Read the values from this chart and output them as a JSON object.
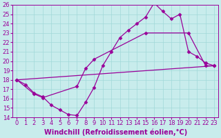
{
  "xlabel": "Windchill (Refroidissement éolien,°C)",
  "bg_color": "#c8ecec",
  "line_color": "#990099",
  "xlim": [
    -0.5,
    23.5
  ],
  "ylim": [
    14,
    26
  ],
  "xticks": [
    0,
    1,
    2,
    3,
    4,
    5,
    6,
    7,
    8,
    9,
    10,
    11,
    12,
    13,
    14,
    15,
    16,
    17,
    18,
    19,
    20,
    21,
    22,
    23
  ],
  "yticks": [
    14,
    15,
    16,
    17,
    18,
    19,
    20,
    21,
    22,
    23,
    24,
    25,
    26
  ],
  "line1_x": [
    0,
    1,
    2,
    3,
    4,
    5,
    6,
    7,
    8,
    9,
    10,
    11,
    12,
    13,
    14,
    15,
    16,
    17,
    18,
    19,
    20,
    21,
    22,
    23
  ],
  "line1_y": [
    18.0,
    17.5,
    16.6,
    16.2,
    15.3,
    14.8,
    14.3,
    14.2,
    15.6,
    17.2,
    19.5,
    21.0,
    22.5,
    23.3,
    24.0,
    24.7,
    26.2,
    25.3,
    24.5,
    25.0,
    21.0,
    20.5,
    19.8,
    19.5
  ],
  "line2_x": [
    0,
    2,
    3,
    7,
    8,
    9,
    15,
    20,
    22,
    23
  ],
  "line2_y": [
    18.0,
    16.5,
    16.1,
    17.3,
    19.2,
    20.2,
    23.0,
    23.0,
    19.5,
    19.5
  ],
  "line3_x": [
    0,
    23
  ],
  "line3_y": [
    18.0,
    19.5
  ],
  "marker": "D",
  "markersize": 2.5,
  "linewidth": 0.9,
  "xlabel_fontsize": 7,
  "tick_fontsize": 6.0
}
